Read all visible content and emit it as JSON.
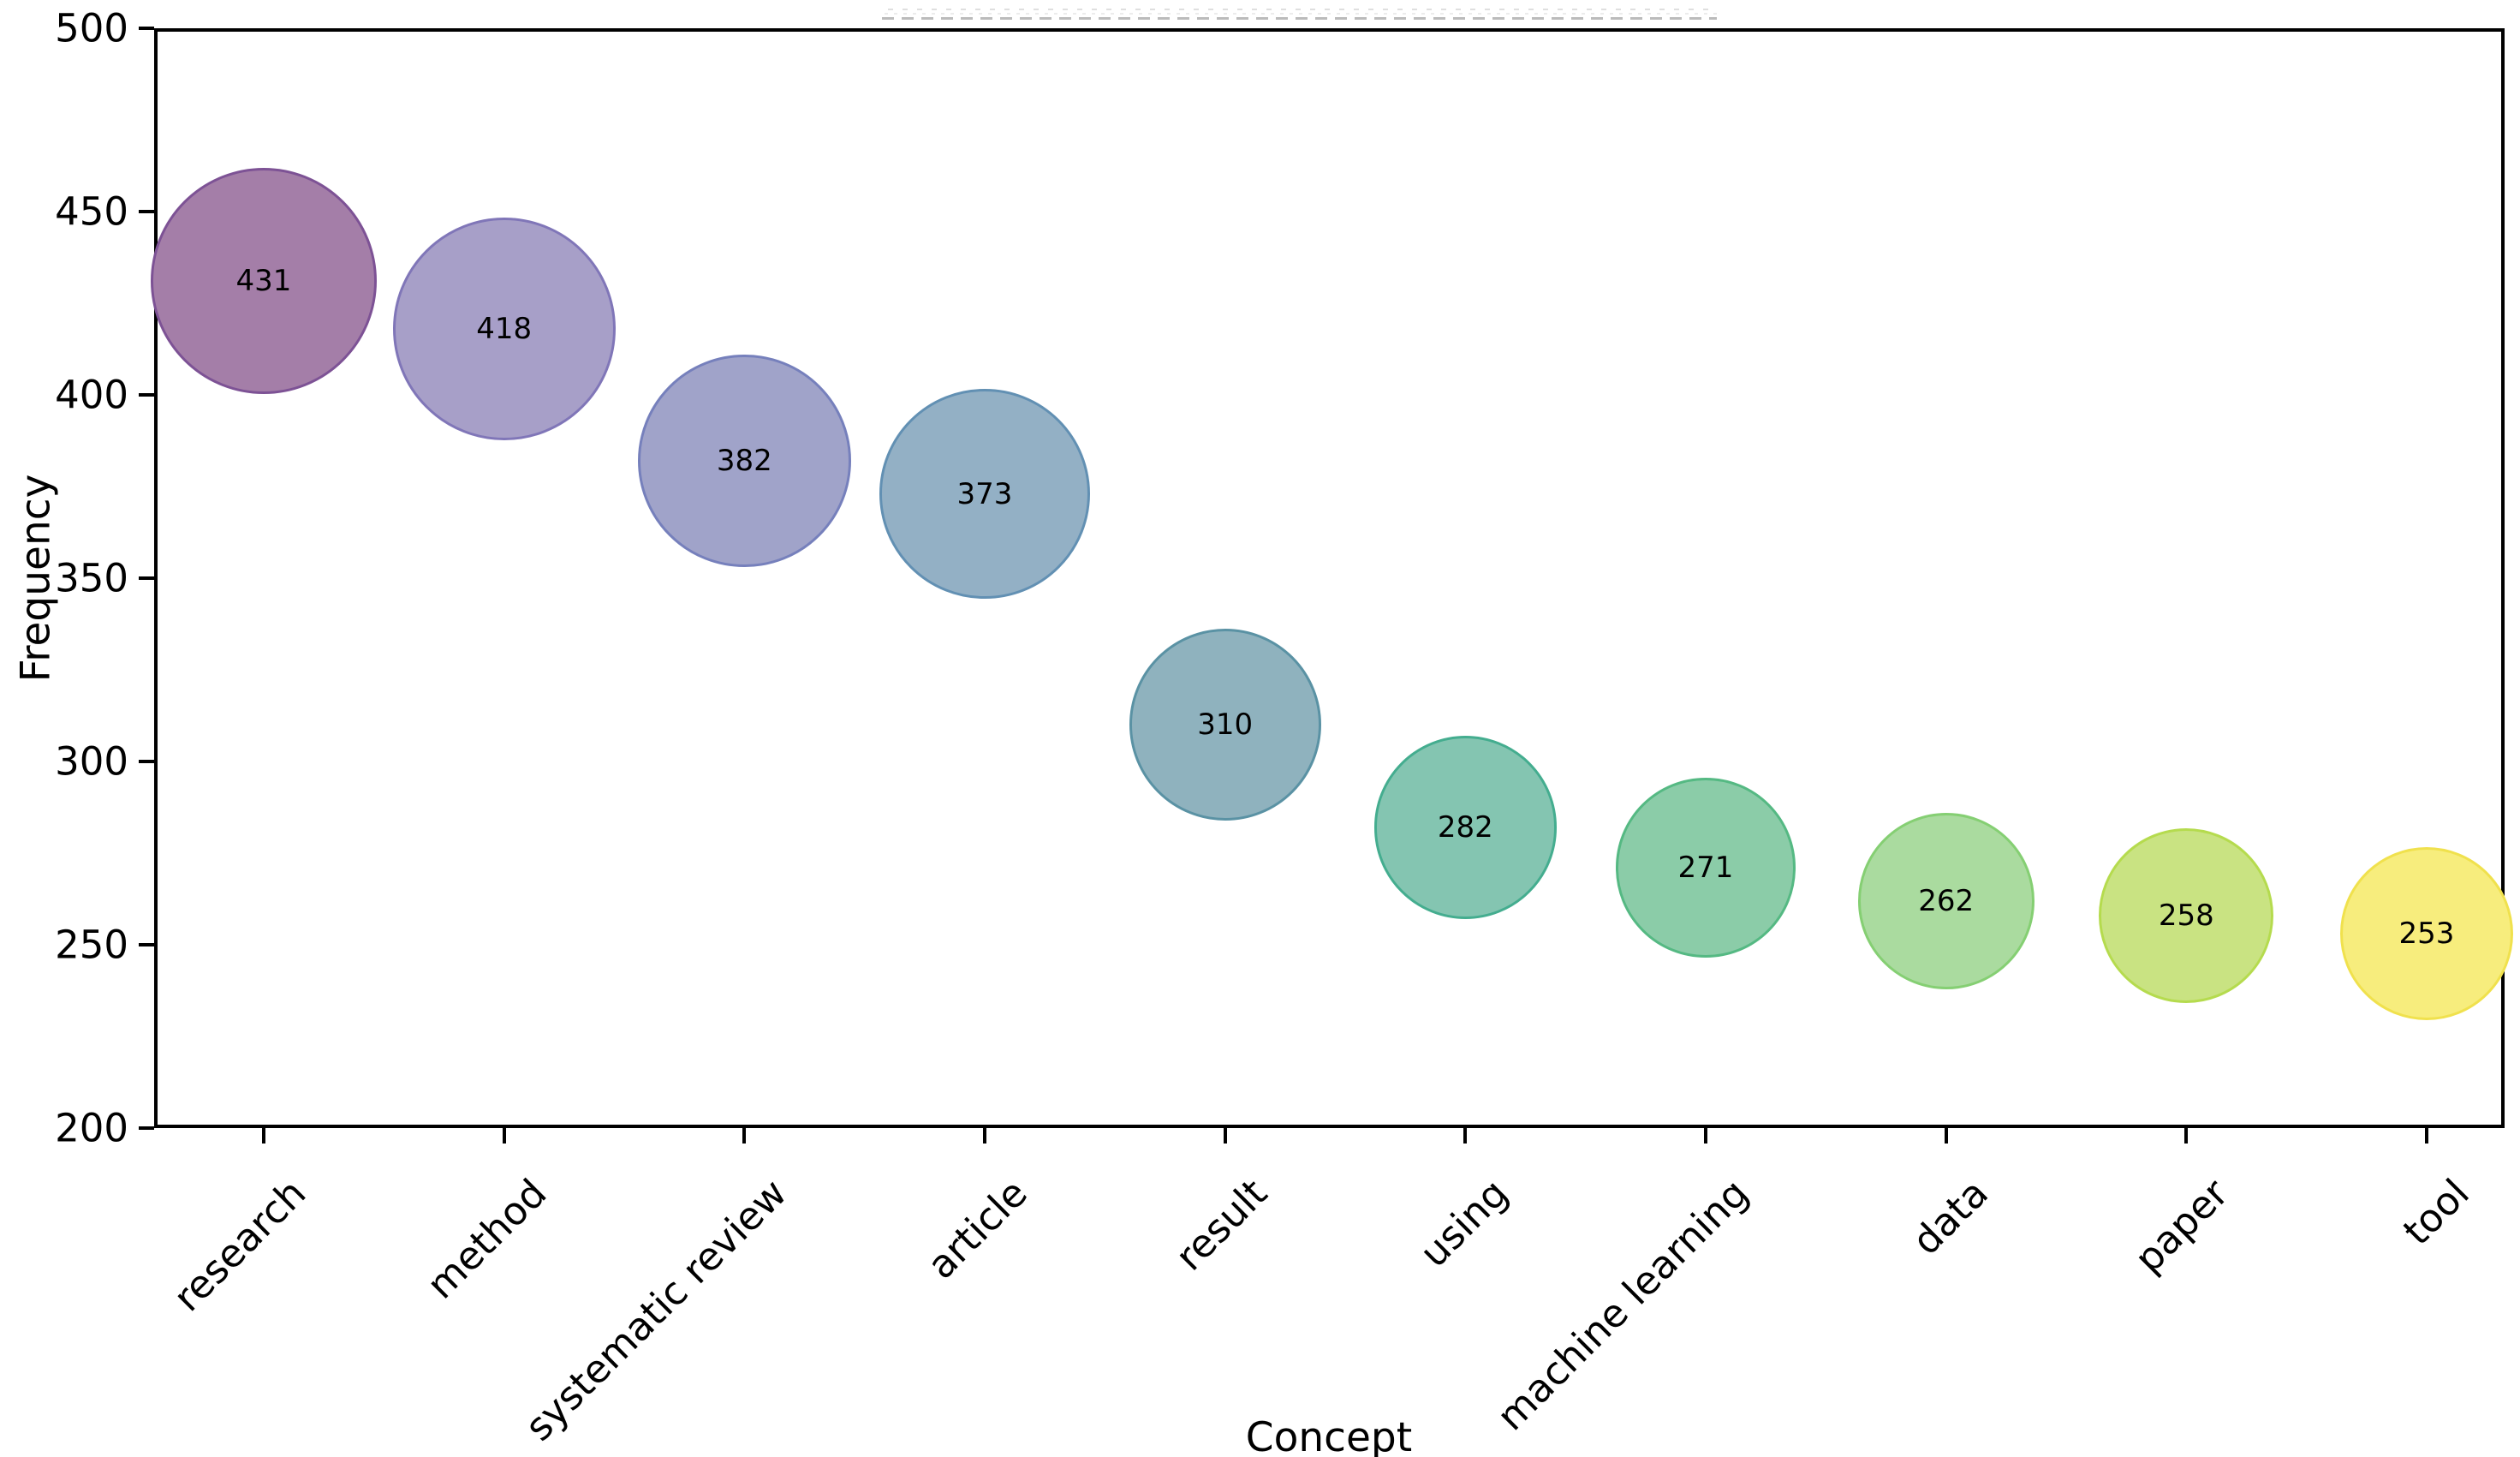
{
  "chart_data": {
    "type": "scatter",
    "subtype": "bubble",
    "title": "",
    "title_clipped_at_top": true,
    "xlabel": "Concept",
    "ylabel": "Frequency",
    "categories": [
      "research",
      "method",
      "systematic review",
      "article",
      "result",
      "using",
      "machine learning",
      "data",
      "paper",
      "tool"
    ],
    "values": [
      431,
      418,
      382,
      373,
      310,
      282,
      271,
      262,
      258,
      253
    ],
    "ylim": [
      200,
      500
    ],
    "y_ticks": [
      500,
      450,
      400,
      350,
      300,
      250,
      200
    ],
    "grid": false,
    "legend_position": "none",
    "bubble_area_proportional_to_value": true,
    "colors": {
      "background": "#ffffff",
      "axis": "#000000",
      "text": "#000000",
      "fills": [
        "#A47EA8",
        "#A79FC8",
        "#A0A3C9",
        "#93B0C5",
        "#8FB2BE",
        "#84C5B1",
        "#8BCCA8",
        "#AADB9F",
        "#C9E382",
        "#F7ED7D"
      ],
      "edges": [
        "#7D5295",
        "#8076B8",
        "#7680BC",
        "#6290B3",
        "#5A92A4",
        "#44AD8F",
        "#55B983",
        "#85CF73",
        "#B5DB4E",
        "#F0E14D"
      ]
    }
  }
}
